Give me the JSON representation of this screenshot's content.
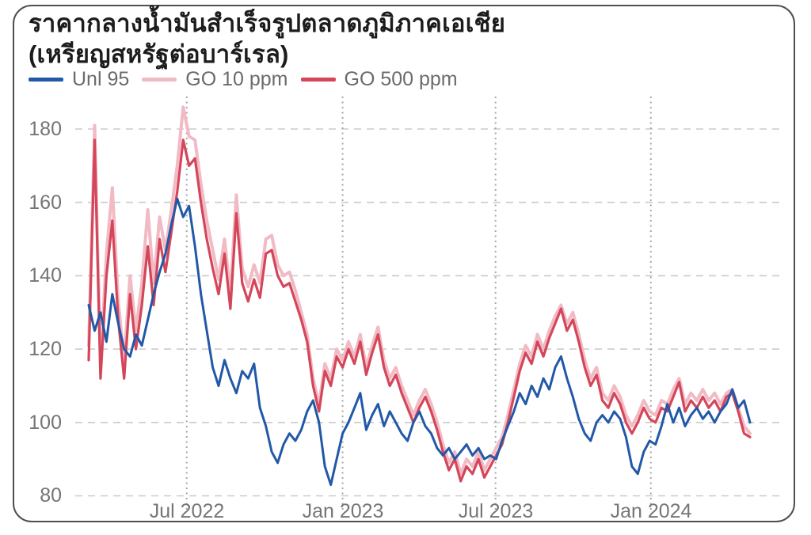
{
  "card": {
    "title_line1": "ราคากลางน้ำมันสำเร็จรูปตลาดภูมิภาคเอเชีย",
    "title_line2": "(เหรียญสหรัฐต่อบาร์เรล)"
  },
  "chart_data": {
    "type": "line",
    "title": "ราคากลางน้ำมันสำเร็จรูปตลาดภูมิภาคเอเชีย",
    "subtitle": "(เหรียญสหรัฐต่อบาร์เรล)",
    "legend_position": "top",
    "grid": {
      "horizontal": "dashed",
      "vertical": "dotted"
    },
    "ylim": [
      76,
      190
    ],
    "y_ticks": [
      180,
      160,
      140,
      120,
      100,
      80
    ],
    "y_tick_labels": [
      "180",
      "160",
      "140",
      "120",
      "100",
      "80"
    ],
    "x_tick_labels": [
      "Jul 2022",
      "Jan 2023",
      "Jul 2023",
      "Jan 2024"
    ],
    "x_tick_positions_weeks": [
      16.6,
      43,
      68.9,
      95.2
    ],
    "x_total_weeks": 112,
    "colors": {
      "unl95": "#2158a8",
      "go10ppm": "#f1bac4",
      "go500ppm": "#d4465a",
      "grid_h": "#cbcbcb",
      "grid_v": "#a6a6a6",
      "axis_text": "#757575"
    },
    "series": [
      {
        "name": "Unl 95",
        "color": "#2158a8",
        "values": [
          132,
          125,
          130,
          122,
          135,
          127,
          120,
          118,
          124,
          121,
          128,
          135,
          141,
          146,
          154,
          161,
          156,
          159,
          148,
          135,
          125,
          115,
          110,
          117,
          112,
          108,
          114,
          112,
          116,
          104,
          99,
          92,
          89,
          94,
          97,
          95,
          98,
          103,
          106,
          100,
          88,
          83,
          90,
          97,
          100,
          104,
          108,
          98,
          102,
          105,
          99,
          103,
          100,
          97,
          95,
          100,
          103,
          99,
          97,
          93,
          91,
          93,
          90,
          92,
          94,
          91,
          93,
          90,
          91,
          90,
          95,
          99,
          103,
          108,
          105,
          110,
          107,
          112,
          109,
          115,
          118,
          112,
          107,
          101,
          97,
          95,
          100,
          102,
          100,
          103,
          101,
          96,
          88,
          86,
          92,
          95,
          94,
          99,
          105,
          100,
          104,
          99,
          102,
          104,
          101,
          103,
          100,
          103,
          105,
          109,
          104,
          106,
          100
        ]
      },
      {
        "name": "GO 10 ppm",
        "color": "#f1bac4",
        "values": [
          121,
          181,
          116,
          146,
          164,
          133,
          117,
          140,
          125,
          138,
          158,
          138,
          156,
          147,
          158,
          170,
          186,
          178,
          177,
          165,
          155,
          147,
          139,
          150,
          135,
          162,
          142,
          137,
          143,
          138,
          150,
          151,
          143,
          140,
          141,
          136,
          130,
          124,
          112,
          105,
          116,
          112,
          120,
          117,
          122,
          118,
          124,
          115,
          121,
          126,
          117,
          112,
          115,
          110,
          106,
          102,
          106,
          109,
          105,
          100,
          94,
          89,
          92,
          86,
          90,
          88,
          92,
          87,
          90,
          93,
          96,
          102,
          109,
          116,
          121,
          118,
          124,
          120,
          125,
          129,
          132,
          127,
          130,
          124,
          117,
          112,
          115,
          108,
          106,
          110,
          107,
          102,
          99,
          102,
          106,
          103,
          102,
          106,
          105,
          109,
          112,
          105,
          108,
          106,
          109,
          106,
          108,
          105,
          108,
          109,
          104,
          99,
          97
        ]
      },
      {
        "name": "GO 500 ppm",
        "color": "#d4465a",
        "values": [
          117,
          177,
          112,
          140,
          155,
          128,
          112,
          135,
          120,
          132,
          148,
          132,
          150,
          141,
          152,
          163,
          177,
          170,
          172,
          160,
          150,
          142,
          135,
          146,
          131,
          157,
          138,
          133,
          139,
          134,
          146,
          147,
          140,
          137,
          138,
          133,
          128,
          122,
          110,
          103,
          114,
          110,
          118,
          115,
          120,
          116,
          122,
          113,
          119,
          124,
          115,
          110,
          113,
          108,
          104,
          100,
          104,
          107,
          103,
          98,
          92,
          87,
          90,
          84,
          88,
          86,
          90,
          85,
          88,
          91,
          94,
          100,
          107,
          114,
          119,
          116,
          122,
          118,
          123,
          127,
          131,
          125,
          128,
          122,
          115,
          110,
          113,
          106,
          104,
          108,
          105,
          100,
          97,
          100,
          104,
          101,
          100,
          104,
          103,
          107,
          111,
          103,
          106,
          104,
          107,
          104,
          106,
          103,
          107,
          108,
          103,
          97,
          96
        ]
      }
    ]
  }
}
